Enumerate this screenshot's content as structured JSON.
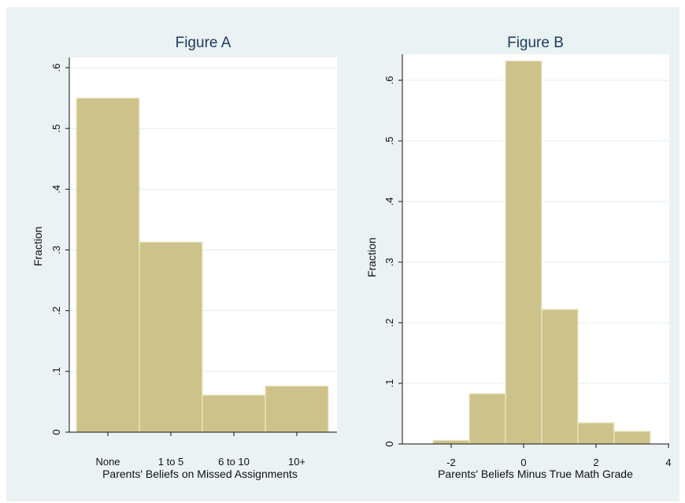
{
  "chart_data": [
    {
      "type": "bar",
      "title": "Figure A",
      "xlabel": "Parents' Beliefs on Missed Assignments",
      "ylabel": "Fraction",
      "categories": [
        "None",
        "1 to 5",
        "6 to 10",
        "10+"
      ],
      "values": [
        0.55,
        0.313,
        0.061,
        0.076
      ],
      "ylim": [
        0,
        0.6
      ],
      "yticks": [
        0,
        0.1,
        0.2,
        0.3,
        0.4,
        0.5,
        0.6
      ],
      "ytick_labels": [
        "0",
        ".1",
        ".2",
        ".3",
        ".4",
        ".5",
        ".6"
      ],
      "grid": true
    },
    {
      "type": "bar",
      "title": "Figure B",
      "xlabel": "Parents' Beliefs Minus True Math Grade",
      "ylabel": "Fraction",
      "bins": [
        {
          "x0": -2.5,
          "x1": -1.5,
          "value": 0.006
        },
        {
          "x0": -1.5,
          "x1": -0.5,
          "value": 0.083
        },
        {
          "x0": -0.5,
          "x1": 0.5,
          "value": 0.632
        },
        {
          "x0": 0.5,
          "x1": 1.5,
          "value": 0.222
        },
        {
          "x0": 1.5,
          "x1": 2.5,
          "value": 0.035
        },
        {
          "x0": 2.5,
          "x1": 3.5,
          "value": 0.021
        }
      ],
      "xlim": [
        -3.2,
        4.2
      ],
      "xticks": [
        -2,
        0,
        2,
        4
      ],
      "xtick_labels": [
        "-2",
        "0",
        "2",
        "4"
      ],
      "ylim": [
        0,
        0.6
      ],
      "yticks": [
        0,
        0.1,
        0.2,
        0.3,
        0.4,
        0.5,
        0.6
      ],
      "ytick_labels": [
        "0",
        ".1",
        ".2",
        ".3",
        ".4",
        ".5",
        ".6"
      ],
      "grid": true
    }
  ],
  "colors": {
    "bar_fill": "#cdc38a",
    "bar_edge": "#ede8c8",
    "plot_background": "#ffffff",
    "figure_background": "#eaf2f3",
    "title": "#1e3a5f"
  }
}
